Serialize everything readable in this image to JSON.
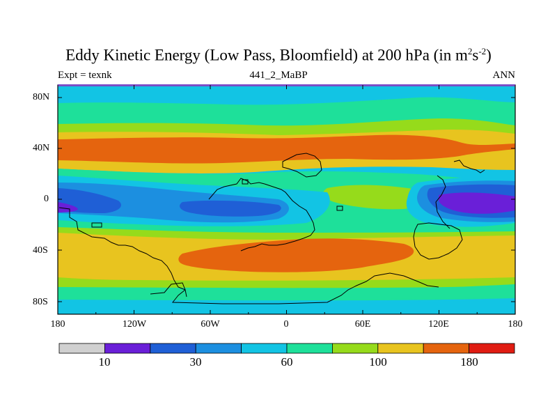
{
  "title": {
    "main": "Eddy Kinetic Energy (Low Pass, Bloomfield) at 200 hPa (in m",
    "sup1": "2",
    "mid": "s",
    "sup2": "-2",
    "end": ")"
  },
  "subtitle": {
    "left": "Expt = texnk",
    "center": "441_2_MaBP",
    "right": "ANN"
  },
  "axes": {
    "y_ticks": [
      "80N",
      "40N",
      "0",
      "40S",
      "80S"
    ],
    "x_ticks": [
      "180",
      "120W",
      "60W",
      "0",
      "60E",
      "120E",
      "180"
    ]
  },
  "colorbar": {
    "labels": [
      "10",
      "30",
      "60",
      "100",
      "180"
    ],
    "colors": [
      "#d0d0d0",
      "#6a1fd8",
      "#1f5fd6",
      "#1c8fe0",
      "#12c4e4",
      "#1ee09a",
      "#96db1b",
      "#e8c41f",
      "#e5640e",
      "#e01c12"
    ]
  },
  "palette": {
    "purple": "#6a1fd8",
    "blue": "#1f5fd6",
    "midblue": "#1c8fe0",
    "cyan": "#12c4e4",
    "teal": "#1ee09a",
    "green": "#96db1b",
    "yellow": "#e8c41f",
    "orange": "#e5640e",
    "frame": "#000000",
    "coast": "#000000"
  }
}
